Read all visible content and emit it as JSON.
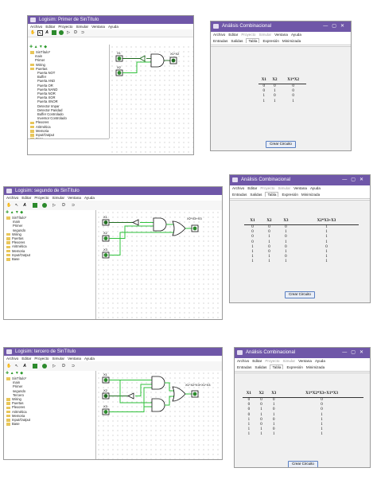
{
  "menu": [
    "Archivo",
    "Editar",
    "Proyecto",
    "Simular",
    "Ventana",
    "Ayuda"
  ],
  "ac_tabs": [
    "Entradas",
    "Salidas",
    "Tabla",
    "Expresión",
    "Minimizada"
  ],
  "ac_button": "Crear Circuito",
  "ac_title": "Análisis Combinacional",
  "win1": {
    "title": "Logisim: Primer de SinTítulo",
    "tree": [
      "SinTítulo*",
      "main",
      "Primer",
      "Wiring",
      "Puertas",
      "Puerta NOT",
      "Buffer",
      "Puerta AND",
      "Puerta OR",
      "Puerta NAND",
      "Puerta NOR",
      "Puerta XOR",
      "Puerta XNOR",
      "Detector Impar",
      "Detector Paridad",
      "Buffer Controlado",
      "Inversor Controlado",
      "Plexores",
      "Aritmética",
      "Memoria",
      "Input/Output",
      "Base"
    ],
    "pins": [
      "X1",
      "X2"
    ],
    "out": "X1*X2",
    "table": {
      "headers": [
        "X1",
        "X2",
        "X1*X2"
      ],
      "rows": [
        [
          "0",
          "0",
          "0"
        ],
        [
          "0",
          "1",
          "0"
        ],
        [
          "1",
          "0",
          "0"
        ],
        [
          "1",
          "1",
          "1"
        ]
      ]
    }
  },
  "win2": {
    "title": "Logisim: segundo de SinTítulo",
    "tree": [
      "SinTítulo*",
      "main",
      "Primer",
      "segundo",
      "Wiring",
      "Puertas",
      "Plexores",
      "Aritmética",
      "Memoria",
      "Input/Output",
      "Base"
    ],
    "pins": [
      "X1",
      "X2",
      "X3"
    ],
    "out": "X2*X3+X3",
    "table": {
      "headers": [
        "X1",
        "X2",
        "X3",
        "X2*X3+X3"
      ],
      "rows": [
        [
          "0",
          "0",
          "0",
          "1"
        ],
        [
          "0",
          "0",
          "1",
          "1"
        ],
        [
          "0",
          "1",
          "0",
          "1"
        ],
        [
          "0",
          "1",
          "1",
          "1"
        ],
        [
          "1",
          "0",
          "0",
          "0"
        ],
        [
          "1",
          "0",
          "1",
          "1"
        ],
        [
          "1",
          "1",
          "0",
          "1"
        ],
        [
          "1",
          "1",
          "1",
          "1"
        ]
      ]
    }
  },
  "win3": {
    "title": "Logisim: tercero de SinTítulo",
    "tree": [
      "SinTítulo*",
      "main",
      "Primer",
      "segundo",
      "Tercero",
      "Wiring",
      "Puertas",
      "Plexores",
      "Aritmética",
      "Memoria",
      "Input/Output",
      "Base"
    ],
    "pins": [
      "X1",
      "X2",
      "X3"
    ],
    "out": "X1*X2*X3+X1*X3",
    "table": {
      "headers": [
        "X1",
        "X2",
        "X3",
        "X1*X2*X3+X1*X3"
      ],
      "rows": [
        [
          "0",
          "0",
          "0",
          "0"
        ],
        [
          "0",
          "0",
          "1",
          "0"
        ],
        [
          "0",
          "1",
          "0",
          "0"
        ],
        [
          "0",
          "1",
          "1",
          "1"
        ],
        [
          "1",
          "0",
          "0",
          "1"
        ],
        [
          "1",
          "0",
          "1",
          "1"
        ],
        [
          "1",
          "1",
          "0",
          "1"
        ],
        [
          "1",
          "1",
          "1",
          "1"
        ]
      ]
    }
  },
  "colors": {
    "titlebar": "#6f57a8",
    "wire_on": "#2ec03a",
    "wire_off": "#1f6b1f"
  }
}
